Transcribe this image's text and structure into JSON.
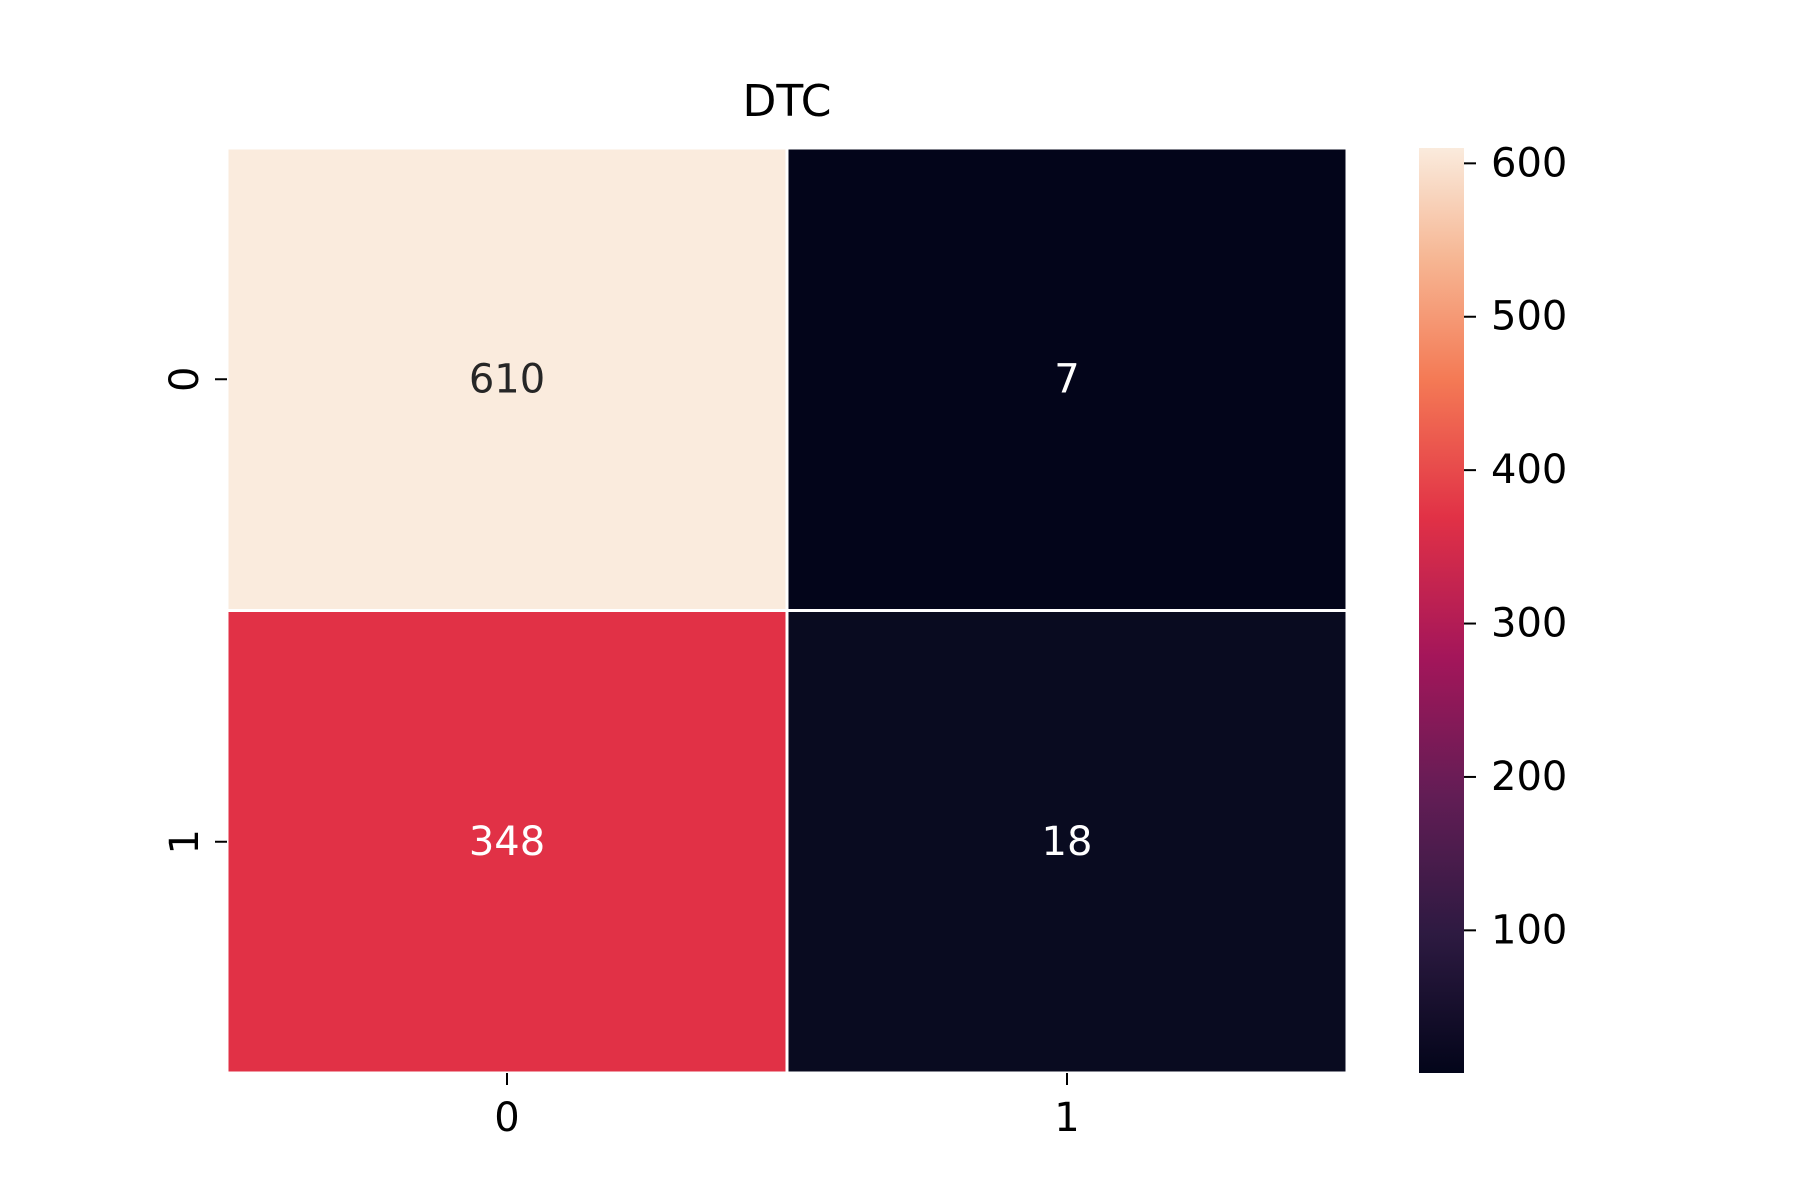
{
  "chart_data": {
    "type": "heatmap",
    "title": "DTC",
    "xlabel": "",
    "ylabel": "",
    "x_categories": [
      "0",
      "1"
    ],
    "y_categories": [
      "0",
      "1"
    ],
    "values": [
      [
        610,
        7
      ],
      [
        348,
        18
      ]
    ],
    "cell_labels": [
      [
        "610",
        "7"
      ],
      [
        "348",
        "18"
      ]
    ],
    "colormap": "rocket",
    "colorbar": {
      "range": [
        7,
        610
      ],
      "ticks": [
        100,
        200,
        300,
        400,
        500,
        600
      ],
      "tick_labels": [
        "100",
        "200",
        "300",
        "400",
        "500",
        "600"
      ]
    },
    "cell_colors": [
      [
        "#faebdd",
        "#03051a"
      ],
      [
        "#e13146",
        "#090b20"
      ]
    ],
    "colorbar_stops": [
      {
        "offset": 0,
        "color": "#03051a"
      },
      {
        "offset": 0.15,
        "color": "#2d1a41"
      },
      {
        "offset": 0.3,
        "color": "#621d55"
      },
      {
        "offset": 0.45,
        "color": "#a4165a"
      },
      {
        "offset": 0.6,
        "color": "#e13146"
      },
      {
        "offset": 0.75,
        "color": "#f47a55"
      },
      {
        "offset": 0.88,
        "color": "#f6b693"
      },
      {
        "offset": 1,
        "color": "#faebdd"
      }
    ],
    "annotation_colors": {
      "light_cell": "#262626",
      "dark_cell": "#ffffff"
    },
    "cell_border_color": "#ffffff",
    "grid": false,
    "legend": "colorbar-right"
  }
}
